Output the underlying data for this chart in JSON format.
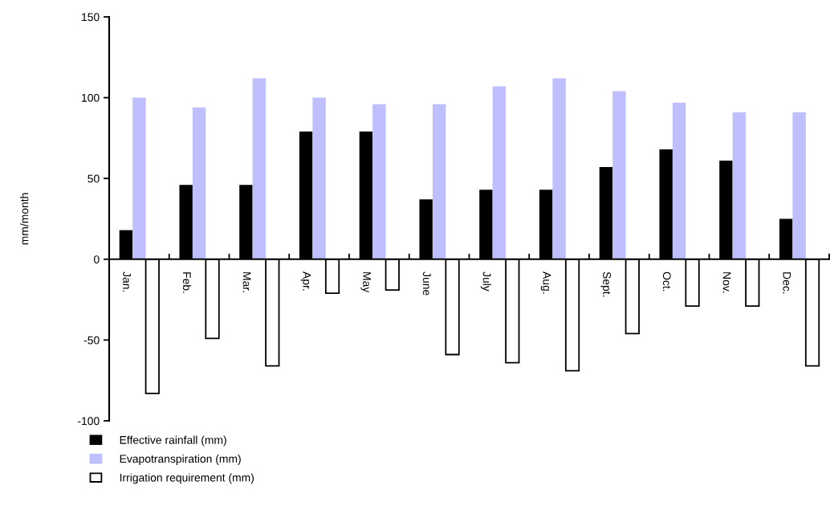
{
  "chart_data": {
    "type": "bar",
    "ylabel": "mm/month",
    "categories": [
      "Jan.",
      "Feb.",
      "Mar.",
      "Apr.",
      "May",
      "June",
      "July",
      "Aug.",
      "Sept.",
      "Oct.",
      "Nov.",
      "Dec."
    ],
    "series": [
      {
        "name": "Effective rainfall (mm)",
        "color": "#000000",
        "values": [
          18,
          46,
          46,
          79,
          79,
          37,
          43,
          43,
          57,
          68,
          61,
          25
        ]
      },
      {
        "name": "Evapotranspiration (mm)",
        "color": "#bfbffd",
        "values": [
          100,
          94,
          112,
          100,
          96,
          96,
          107,
          112,
          104,
          97,
          91,
          91
        ]
      },
      {
        "name": "Irrigation requirement (mm)",
        "color": "#ffffff",
        "values": [
          -83,
          -49,
          -66,
          -21,
          -19,
          -59,
          -64,
          -69,
          -46,
          -29,
          -29,
          -66
        ]
      }
    ],
    "ylim": [
      -100,
      150
    ],
    "yticks": [
      -100,
      -50,
      0,
      50,
      100,
      150
    ],
    "legend": "bottom left"
  }
}
